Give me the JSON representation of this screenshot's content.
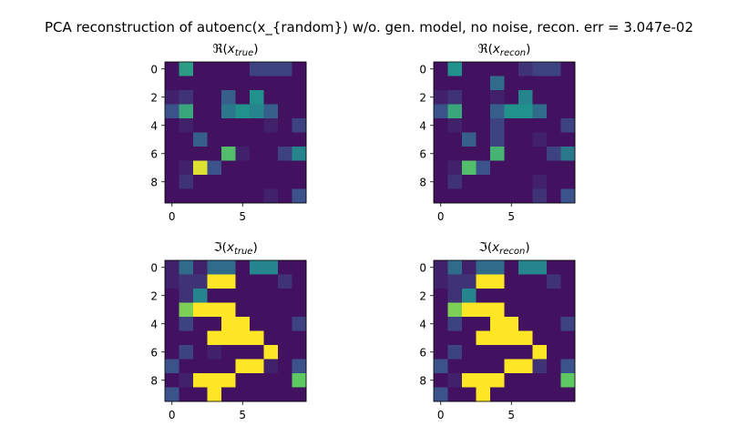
{
  "title": "PCA reconstruction of autoenc(x_{random}) w/o. gen. model, no noise, recon. err = 3.047e-02",
  "chart_data": [
    {
      "type": "heatmap",
      "panel": "top-left",
      "title": "ℜ(x_true)",
      "title_main": "ℜ(",
      "title_var": "x",
      "title_sub": "true",
      "title_close": ")",
      "xticks": [
        "0",
        "5"
      ],
      "yticks": [
        "0",
        "2",
        "4",
        "6",
        "8"
      ],
      "colormap": "viridis",
      "values": [
        [
          0.05,
          0.55,
          0.05,
          0.05,
          0.05,
          0.05,
          0.2,
          0.2,
          0.2,
          0.05
        ],
        [
          0.05,
          0.05,
          0.05,
          0.05,
          0.05,
          0.05,
          0.05,
          0.05,
          0.05,
          0.05
        ],
        [
          0.1,
          0.15,
          0.05,
          0.05,
          0.3,
          0.05,
          0.5,
          0.05,
          0.05,
          0.05
        ],
        [
          0.25,
          0.6,
          0.05,
          0.05,
          0.4,
          0.5,
          0.45,
          0.3,
          0.05,
          0.05
        ],
        [
          0.05,
          0.1,
          0.05,
          0.05,
          0.05,
          0.05,
          0.05,
          0.1,
          0.05,
          0.2
        ],
        [
          0.05,
          0.05,
          0.3,
          0.05,
          0.05,
          0.05,
          0.05,
          0.05,
          0.05,
          0.05
        ],
        [
          0.05,
          0.05,
          0.05,
          0.05,
          0.7,
          0.1,
          0.05,
          0.05,
          0.2,
          0.45
        ],
        [
          0.05,
          0.1,
          0.95,
          0.25,
          0.05,
          0.05,
          0.05,
          0.05,
          0.05,
          0.05
        ],
        [
          0.05,
          0.15,
          0.05,
          0.05,
          0.05,
          0.05,
          0.05,
          0.05,
          0.05,
          0.05
        ],
        [
          0.05,
          0.05,
          0.05,
          0.05,
          0.05,
          0.05,
          0.05,
          0.1,
          0.05,
          0.25
        ]
      ]
    },
    {
      "type": "heatmap",
      "panel": "top-right",
      "title": "ℜ(x_recon)",
      "title_main": "ℜ(",
      "title_var": "x",
      "title_sub": "recon",
      "title_close": ")",
      "xticks": [
        "0",
        "5"
      ],
      "yticks": [
        "0",
        "2",
        "4",
        "6",
        "8"
      ],
      "colormap": "viridis",
      "values": [
        [
          0.05,
          0.5,
          0.05,
          0.05,
          0.05,
          0.05,
          0.15,
          0.2,
          0.2,
          0.05
        ],
        [
          0.05,
          0.05,
          0.05,
          0.05,
          0.35,
          0.05,
          0.05,
          0.05,
          0.05,
          0.05
        ],
        [
          0.1,
          0.15,
          0.05,
          0.05,
          0.1,
          0.05,
          0.45,
          0.05,
          0.05,
          0.05
        ],
        [
          0.25,
          0.6,
          0.05,
          0.05,
          0.3,
          0.5,
          0.5,
          0.35,
          0.05,
          0.05
        ],
        [
          0.05,
          0.1,
          0.05,
          0.05,
          0.2,
          0.05,
          0.05,
          0.05,
          0.05,
          0.2
        ],
        [
          0.05,
          0.05,
          0.3,
          0.05,
          0.2,
          0.05,
          0.05,
          0.1,
          0.05,
          0.05
        ],
        [
          0.05,
          0.05,
          0.05,
          0.05,
          0.65,
          0.05,
          0.05,
          0.05,
          0.2,
          0.4
        ],
        [
          0.05,
          0.1,
          0.7,
          0.25,
          0.05,
          0.05,
          0.05,
          0.05,
          0.05,
          0.05
        ],
        [
          0.05,
          0.15,
          0.05,
          0.05,
          0.05,
          0.05,
          0.05,
          0.1,
          0.05,
          0.05
        ],
        [
          0.05,
          0.05,
          0.05,
          0.05,
          0.05,
          0.05,
          0.05,
          0.15,
          0.05,
          0.25
        ]
      ]
    },
    {
      "type": "heatmap",
      "panel": "bottom-left",
      "title": "ℑ(x_true)",
      "title_main": "ℑ(",
      "title_var": "x",
      "title_sub": "true",
      "title_close": ")",
      "xticks": [
        "0",
        "5"
      ],
      "yticks": [
        "0",
        "2",
        "4",
        "6",
        "8"
      ],
      "colormap": "viridis",
      "values": [
        [
          0.1,
          0.35,
          0.1,
          0.35,
          0.35,
          0.05,
          0.45,
          0.45,
          0.05,
          0.05
        ],
        [
          0.1,
          0.15,
          0.15,
          1.0,
          1.0,
          0.05,
          0.05,
          0.05,
          0.15,
          0.05
        ],
        [
          0.05,
          0.15,
          0.45,
          0.05,
          0.05,
          0.05,
          0.05,
          0.05,
          0.05,
          0.05
        ],
        [
          0.05,
          0.8,
          1.0,
          1.0,
          1.0,
          0.05,
          0.05,
          0.05,
          0.05,
          0.05
        ],
        [
          0.05,
          0.2,
          0.05,
          0.05,
          1.0,
          1.0,
          0.05,
          0.05,
          0.05,
          0.2
        ],
        [
          0.05,
          0.05,
          0.05,
          1.0,
          1.0,
          1.0,
          1.0,
          0.05,
          0.05,
          0.05
        ],
        [
          0.05,
          0.2,
          0.05,
          0.1,
          0.05,
          0.05,
          0.05,
          1.0,
          0.05,
          0.05
        ],
        [
          0.25,
          0.05,
          0.05,
          0.05,
          0.05,
          1.0,
          1.0,
          0.1,
          0.05,
          0.25
        ],
        [
          0.05,
          0.1,
          1.0,
          1.0,
          1.0,
          0.05,
          0.05,
          0.05,
          0.05,
          0.75
        ],
        [
          0.25,
          0.05,
          0.05,
          1.0,
          0.05,
          0.05,
          0.05,
          0.05,
          0.05,
          0.05
        ]
      ]
    },
    {
      "type": "heatmap",
      "panel": "bottom-right",
      "title": "ℑ(x_recon)",
      "title_main": "ℑ(",
      "title_var": "x",
      "title_sub": "recon",
      "title_close": ")",
      "xticks": [
        "0",
        "5"
      ],
      "yticks": [
        "0",
        "2",
        "4",
        "6",
        "8"
      ],
      "colormap": "viridis",
      "values": [
        [
          0.1,
          0.35,
          0.1,
          0.35,
          0.35,
          0.05,
          0.45,
          0.45,
          0.05,
          0.05
        ],
        [
          0.1,
          0.15,
          0.15,
          1.0,
          1.0,
          0.05,
          0.05,
          0.05,
          0.15,
          0.05
        ],
        [
          0.05,
          0.15,
          0.45,
          0.05,
          0.05,
          0.05,
          0.05,
          0.05,
          0.05,
          0.05
        ],
        [
          0.05,
          0.8,
          1.0,
          1.0,
          1.0,
          0.05,
          0.05,
          0.05,
          0.05,
          0.05
        ],
        [
          0.05,
          0.2,
          0.05,
          0.05,
          1.0,
          1.0,
          0.05,
          0.05,
          0.05,
          0.2
        ],
        [
          0.05,
          0.05,
          0.05,
          1.0,
          1.0,
          1.0,
          1.0,
          0.05,
          0.05,
          0.05
        ],
        [
          0.05,
          0.2,
          0.05,
          0.05,
          0.05,
          0.05,
          0.05,
          1.0,
          0.05,
          0.05
        ],
        [
          0.25,
          0.05,
          0.05,
          0.05,
          0.05,
          1.0,
          1.0,
          0.15,
          0.05,
          0.25
        ],
        [
          0.05,
          0.1,
          1.0,
          1.0,
          1.0,
          0.05,
          0.05,
          0.05,
          0.05,
          0.75
        ],
        [
          0.25,
          0.05,
          0.05,
          1.0,
          0.05,
          0.05,
          0.05,
          0.05,
          0.05,
          0.05
        ]
      ]
    }
  ]
}
